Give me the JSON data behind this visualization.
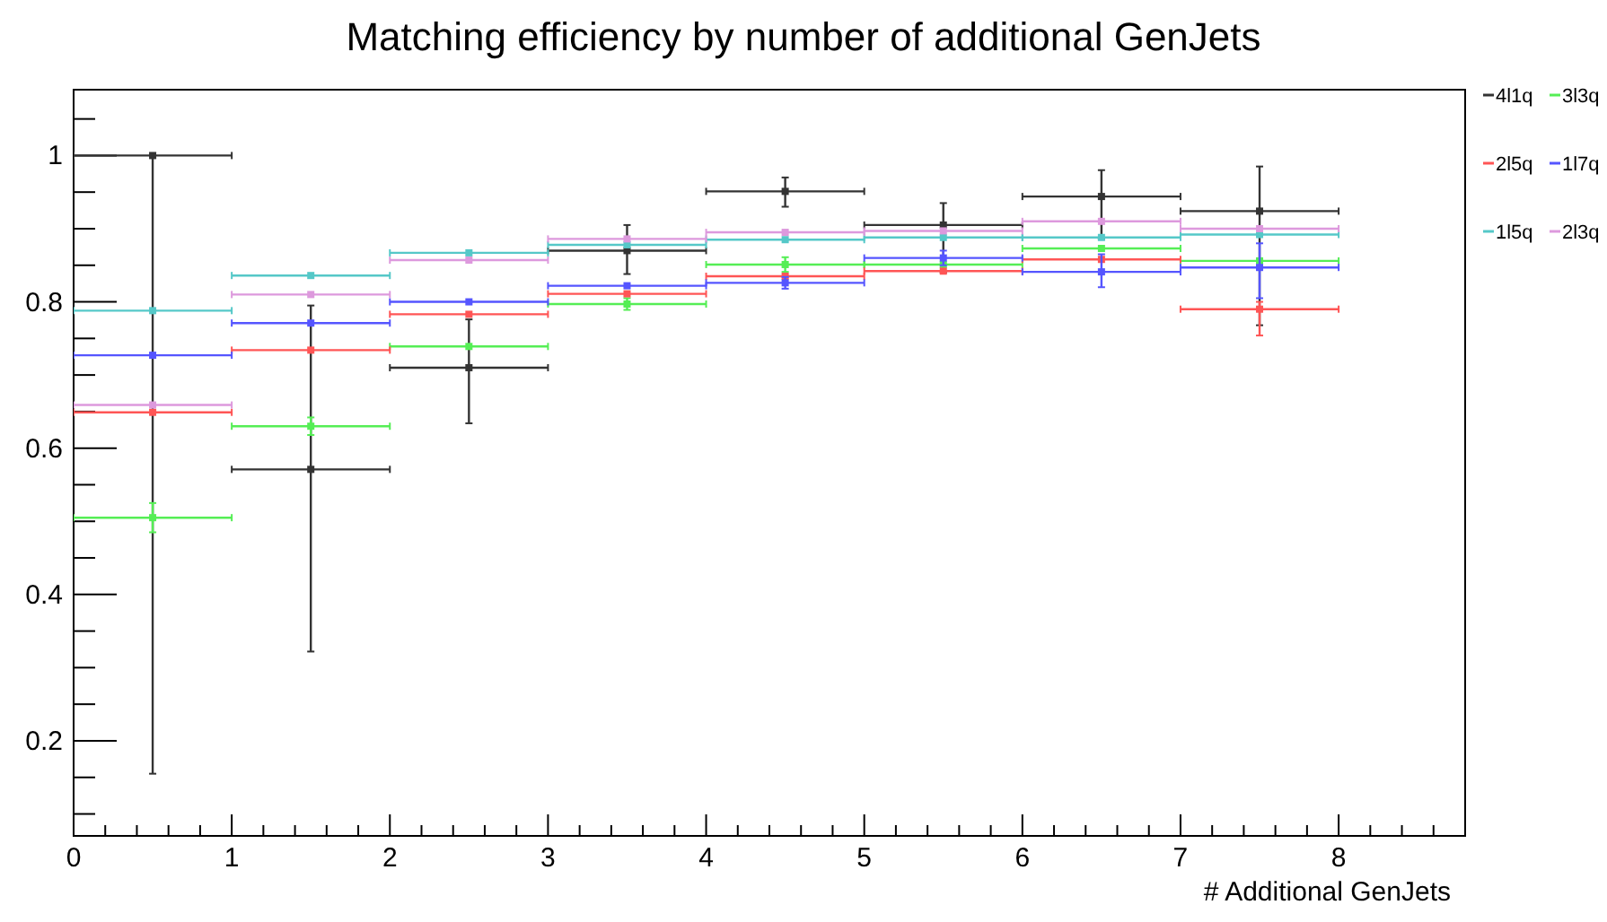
{
  "chart_data": {
    "type": "scatter",
    "title": "Matching efficiency by number of additional GenJets",
    "xlabel": "# Additional GenJets",
    "xlim": [
      0,
      8.8
    ],
    "ylim": [
      0.07,
      1.09
    ],
    "xticks": [
      0,
      1,
      2,
      3,
      4,
      5,
      6,
      7,
      8
    ],
    "yticks": [
      {
        "value": 0.2,
        "label": "0.2"
      },
      {
        "value": 0.4,
        "label": "0.4"
      },
      {
        "value": 0.6,
        "label": "0.6"
      },
      {
        "value": 0.8,
        "label": "0.8"
      },
      {
        "value": 1,
        "label": "1"
      }
    ],
    "grid": false,
    "legend": "right",
    "marker": "square",
    "x": [
      0.5,
      1.5,
      2.5,
      3.5,
      4.5,
      5.5,
      6.5,
      7.5
    ],
    "series": [
      {
        "name": "4l1q",
        "color": "#333333",
        "values": [
          1.0,
          0.571,
          0.71,
          0.87,
          0.951,
          0.905,
          0.944,
          0.924
        ],
        "xerrors": [
          0.5,
          0.5,
          0.5,
          0.5,
          0.5,
          0.5,
          0.5,
          0.5
        ],
        "errors": [
          [
            0.155,
            1.0
          ],
          [
            0.322,
            0.795
          ],
          [
            0.634,
            0.776
          ],
          [
            0.838,
            0.905
          ],
          [
            0.93,
            0.97
          ],
          [
            0.84,
            0.935
          ],
          [
            0.886,
            0.98
          ],
          [
            0.768,
            0.985
          ]
        ]
      },
      {
        "name": "3l3q",
        "color": "#55ee55",
        "values": [
          0.505,
          0.63,
          0.739,
          0.797,
          0.851,
          0.851,
          0.873,
          0.856
        ],
        "xerrors": [
          0.5,
          0.5,
          0.5,
          0.5,
          0.5,
          0.5,
          0.5,
          0.5
        ],
        "errors": [
          0.02,
          0.012,
          null,
          0.008,
          0.01,
          null,
          null,
          null
        ]
      },
      {
        "name": "2l5q",
        "color": "#ff5555",
        "values": [
          0.649,
          0.734,
          0.783,
          0.811,
          0.835,
          0.842,
          0.858,
          0.79
        ],
        "xerrors": [
          0.5,
          0.5,
          0.5,
          0.5,
          0.5,
          0.5,
          0.5,
          0.5
        ],
        "errors": [
          null,
          null,
          null,
          null,
          null,
          null,
          null,
          [
            0.754,
            0.8
          ]
        ]
      },
      {
        "name": "1l7q",
        "color": "#5555ff",
        "values": [
          0.727,
          0.771,
          0.8,
          0.822,
          0.826,
          0.86,
          0.841,
          0.847
        ],
        "xerrors": [
          0.5,
          0.5,
          0.5,
          0.5,
          0.5,
          0.5,
          0.5,
          0.5
        ],
        "errors": [
          null,
          null,
          null,
          null,
          0.008,
          0.01,
          [
            0.82,
            0.865
          ],
          [
            0.805,
            0.88
          ]
        ]
      },
      {
        "name": "1l5q",
        "color": "#55c8c8",
        "values": [
          0.788,
          0.836,
          0.867,
          0.878,
          0.885,
          0.888,
          0.888,
          0.892
        ],
        "xerrors": [
          0.5,
          0.5,
          0.5,
          0.5,
          0.5,
          0.5,
          0.5,
          0.5
        ]
      },
      {
        "name": "2l3q",
        "color": "#dd99dd",
        "values": [
          0.659,
          0.81,
          0.857,
          0.886,
          0.895,
          0.897,
          0.91,
          0.9
        ],
        "xerrors": [
          0.5,
          0.5,
          0.5,
          0.5,
          0.5,
          0.5,
          0.5,
          0.5
        ]
      }
    ]
  }
}
